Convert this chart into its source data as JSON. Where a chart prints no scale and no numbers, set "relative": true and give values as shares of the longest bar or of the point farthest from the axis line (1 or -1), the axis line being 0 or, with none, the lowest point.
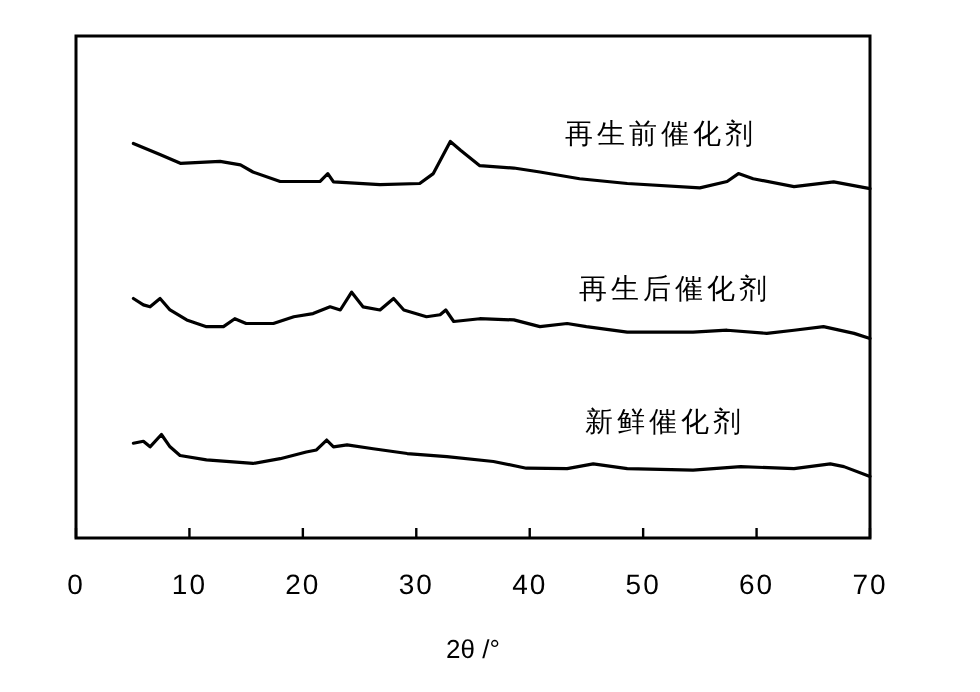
{
  "chart_data": {
    "type": "line",
    "relative": true,
    "xlabel": "2θ /°",
    "xlim": [
      0,
      70
    ],
    "xticks": [
      0,
      10,
      20,
      30,
      40,
      50,
      60,
      70
    ],
    "legend": false,
    "grid": false,
    "marker": "none",
    "line_style": "solid",
    "series": [
      {
        "name": "再生前催化剂",
        "color": "#000000",
        "x": [
          5.06,
          7.4,
          9.2,
          12.7,
          14.5,
          15.6,
          18.0,
          21.5,
          22.2,
          22.7,
          26.8,
          30.3,
          31.5,
          33.0,
          33.9,
          35.6,
          38.6,
          40.9,
          44.4,
          48.6,
          55.0,
          57.4,
          58.4,
          59.7,
          63.3,
          66.8,
          70.0
        ],
        "values": [
          0.995,
          0.967,
          0.945,
          0.95,
          0.941,
          0.923,
          0.899,
          0.899,
          0.919,
          0.898,
          0.891,
          0.894,
          0.919,
          1,
          0.978,
          0.939,
          0.933,
          0.923,
          0.906,
          0.894,
          0.883,
          0.899,
          0.919,
          0.906,
          0.886,
          0.898,
          0.881
        ]
      },
      {
        "name": "再生后催化剂",
        "color": "#000000",
        "x": [
          5.06,
          5.94,
          6.53,
          7.41,
          8.29,
          9.76,
          11.5,
          13.0,
          14.0,
          15.0,
          17.4,
          19.2,
          20.9,
          22.4,
          23.3,
          24.3,
          25.3,
          26.8,
          28.0,
          28.9,
          30.9,
          32.1,
          32.6,
          33.3,
          35.6,
          38.6,
          40.9,
          43.3,
          45.0,
          48.6,
          54.4,
          57.4,
          60.9,
          63.3,
          65.9,
          68.6,
          70.0
        ],
        "values": [
          0.604,
          0.588,
          0.583,
          0.604,
          0.575,
          0.55,
          0.533,
          0.533,
          0.553,
          0.541,
          0.541,
          0.558,
          0.566,
          0.583,
          0.575,
          0.62,
          0.583,
          0.575,
          0.604,
          0.575,
          0.558,
          0.563,
          0.575,
          0.546,
          0.553,
          0.55,
          0.533,
          0.541,
          0.533,
          0.519,
          0.519,
          0.524,
          0.516,
          0.524,
          0.533,
          0.516,
          0.503
        ]
      },
      {
        "name": "新鲜催化剂",
        "color": "#000000",
        "x": [
          5.06,
          5.94,
          6.53,
          7.53,
          8.29,
          9.17,
          11.5,
          15.6,
          18.0,
          20.3,
          21.2,
          22.1,
          22.7,
          23.9,
          26.2,
          29.2,
          32.7,
          36.8,
          39.7,
          43.3,
          45.6,
          48.6,
          54.4,
          58.6,
          63.3,
          66.5,
          67.7,
          70.0
        ],
        "values": [
          0.239,
          0.244,
          0.23,
          0.261,
          0.23,
          0.208,
          0.197,
          0.188,
          0.2,
          0.217,
          0.222,
          0.247,
          0.23,
          0.235,
          0.225,
          0.213,
          0.205,
          0.193,
          0.176,
          0.175,
          0.187,
          0.175,
          0.171,
          0.18,
          0.175,
          0.187,
          0.18,
          0.155
        ]
      }
    ]
  }
}
